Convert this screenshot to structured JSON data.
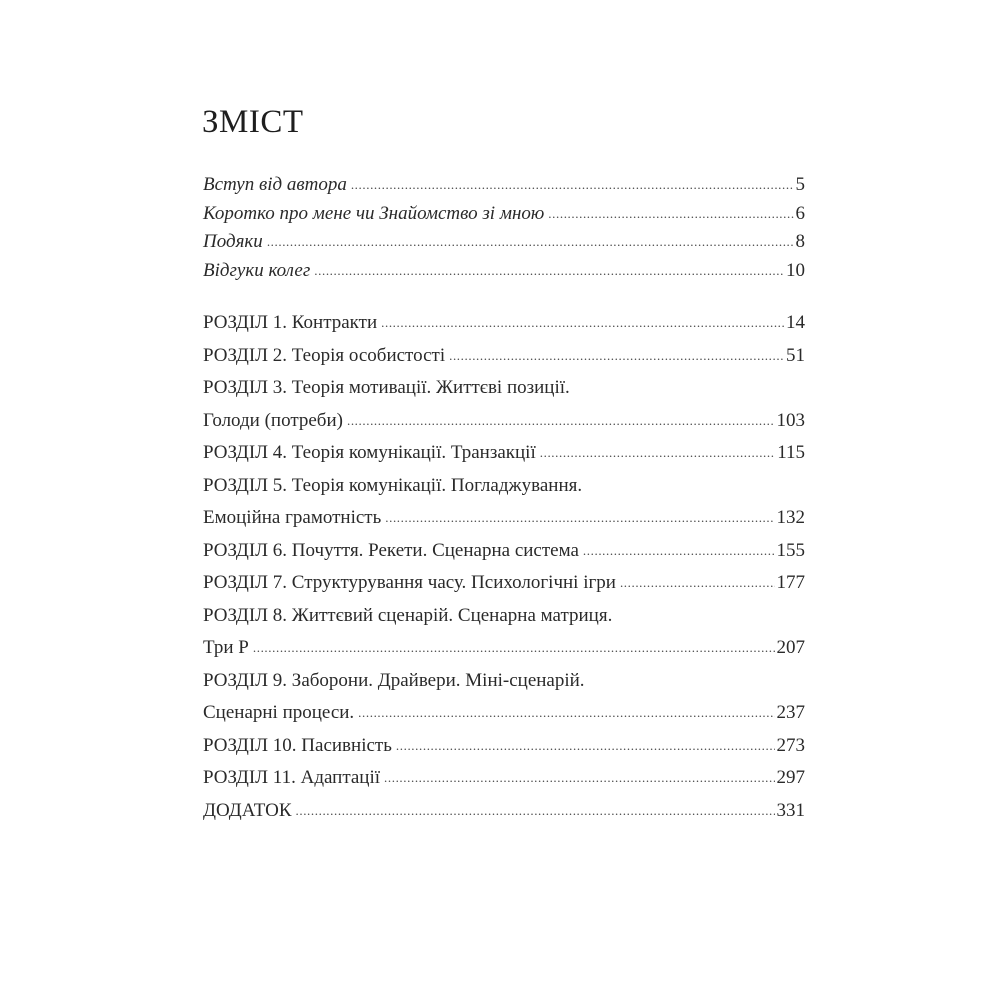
{
  "title": "ЗМІСТ",
  "intro": [
    {
      "label": "Вступ від автора",
      "page": "5"
    },
    {
      "label": "Коротко про мене чи Знайомство зі мною",
      "page": "6"
    },
    {
      "label": "Подяки",
      "page": "8"
    },
    {
      "label": "Відгуки колег",
      "page": "10"
    }
  ],
  "chapters": [
    {
      "lines": [
        "РОЗДІЛ 1. Контракти"
      ],
      "page": "14"
    },
    {
      "lines": [
        "РОЗДІЛ 2. Теорія особистості"
      ],
      "page": "51"
    },
    {
      "lines": [
        "РОЗДІЛ 3. Теорія мотивації. Життєві позиції.",
        "Голоди (потреби)"
      ],
      "page": "103"
    },
    {
      "lines": [
        "РОЗДІЛ 4. Теорія комунікації. Транзакції"
      ],
      "page": "115"
    },
    {
      "lines": [
        "РОЗДІЛ 5. Теорія комунікації. Погладжування.",
        "Емоційна грамотність"
      ],
      "page": "132"
    },
    {
      "lines": [
        "РОЗДІЛ 6. Почуття. Рекети. Сценарна система"
      ],
      "page": "155"
    },
    {
      "lines": [
        "РОЗДІЛ 7. Структурування часу. Психологічні ігри"
      ],
      "page": "177"
    },
    {
      "lines": [
        "РОЗДІЛ 8. Життєвий сценарій. Сценарна матриця.",
        "Три Р"
      ],
      "page": "207"
    },
    {
      "lines": [
        "РОЗДІЛ 9. Заборони. Драйвери. Міні-сценарій.",
        "Сценарні процеси."
      ],
      "page": "237"
    },
    {
      "lines": [
        "РОЗДІЛ 10. Пасивність"
      ],
      "page": "273"
    },
    {
      "lines": [
        "РОЗДІЛ 11. Адаптації"
      ],
      "page": "297"
    },
    {
      "lines": [
        "ДОДАТОК"
      ],
      "page": "331"
    }
  ]
}
